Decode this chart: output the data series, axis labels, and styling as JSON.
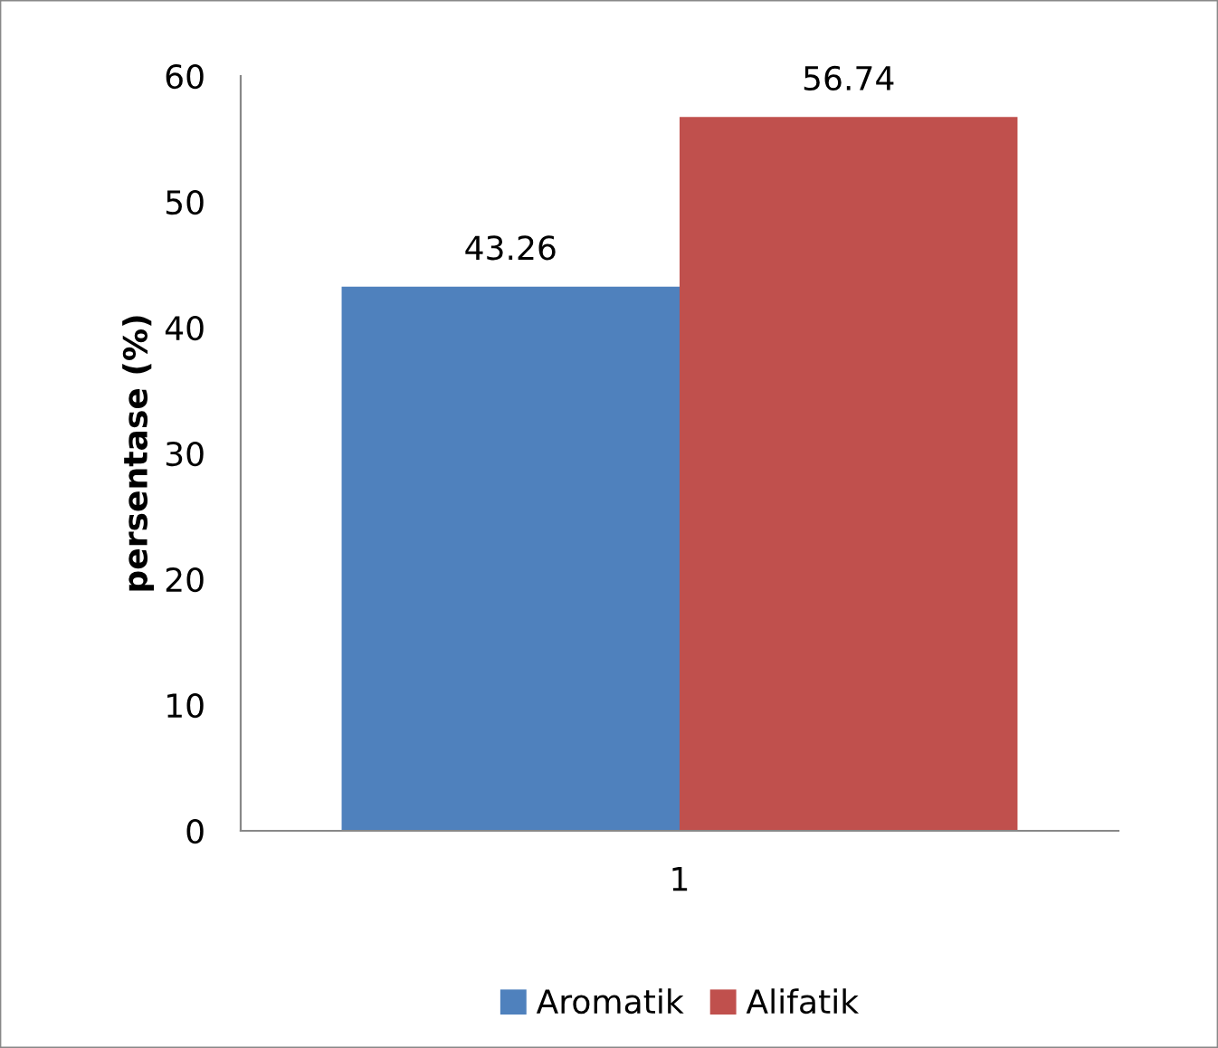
{
  "chart_data": {
    "type": "bar",
    "ylabel": "persentase (%)",
    "categories": [
      "1"
    ],
    "series": [
      {
        "name": "Aromatik",
        "color": "#4f81bd",
        "values": [
          43.26
        ]
      },
      {
        "name": "Alifatik",
        "color": "#c0504d",
        "values": [
          56.74
        ]
      }
    ],
    "ylim": [
      0,
      60
    ],
    "yticks": [
      0,
      10,
      20,
      30,
      40,
      50,
      60
    ],
    "grid": false,
    "legend": "bottom",
    "data_labels": true
  }
}
